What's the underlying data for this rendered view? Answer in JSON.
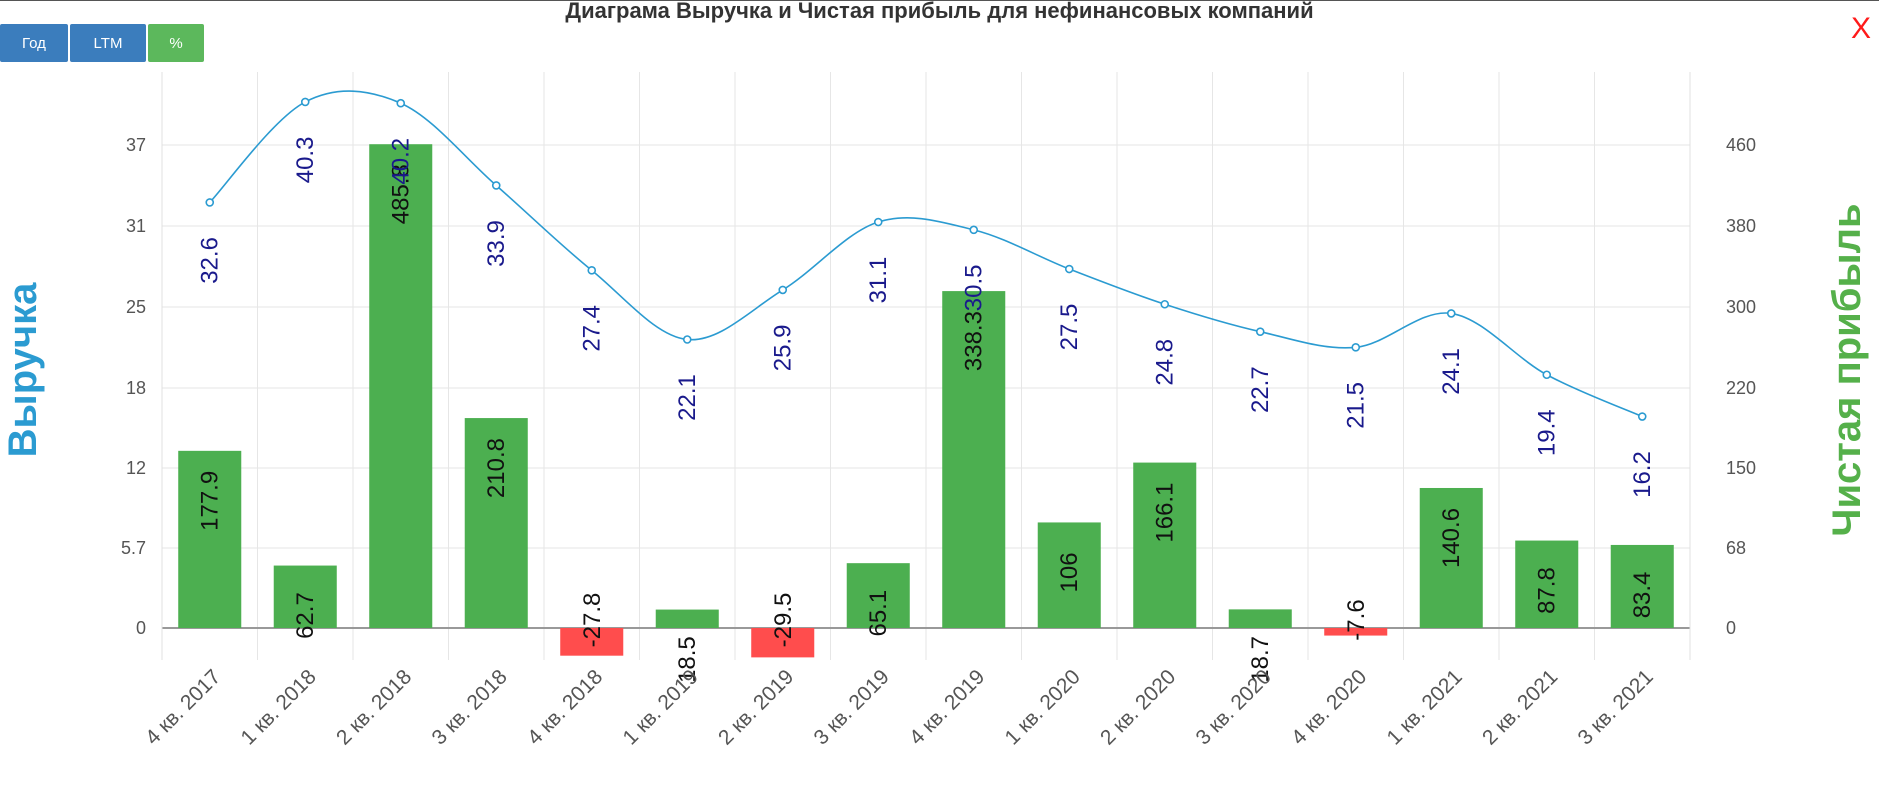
{
  "toolbar": {
    "year_label": "Год",
    "ltm_label": "LTM",
    "percent_label": "%"
  },
  "close_label": "X",
  "chart_data": {
    "type": "bar",
    "title": "Диаграма Выручка и Чистая прибыль для нефинансовых компаний",
    "categories": [
      "4 кв. 2017",
      "1 кв. 2018",
      "2 кв. 2018",
      "3 кв. 2018",
      "4 кв. 2018",
      "1 кв. 2019",
      "2 кв. 2019",
      "3 кв. 2019",
      "4 кв. 2019",
      "1 кв. 2020",
      "2 кв. 2020",
      "3 кв. 2020",
      "4 кв. 2020",
      "1 кв. 2021",
      "2 кв. 2021",
      "3 кв. 2021"
    ],
    "ylabel_left": "Выручка",
    "ylabel_right": "Чистая прибыль",
    "left_ticks": [
      "0",
      "5.7",
      "12",
      "18",
      "25",
      "31",
      "37"
    ],
    "right_ticks": [
      "0",
      "68",
      "150",
      "220",
      "300",
      "380",
      "460"
    ],
    "ylim_left": [
      -2.5,
      43
    ],
    "ylim_right": [
      -31,
      540
    ],
    "colors": {
      "positive_bar": "#4caf50",
      "negative_bar": "#ff4d4d",
      "line": "#2b9bd1",
      "line_label": "#1a1a8c"
    },
    "series": [
      {
        "name": "Чистая прибыль",
        "axis": "right",
        "type": "bar",
        "values": [
          177.9,
          62.7,
          485.8,
          210.8,
          -27.8,
          18.5,
          -29.5,
          65.1,
          338.3,
          106,
          166.1,
          18.7,
          -7.6,
          140.6,
          87.8,
          83.4
        ],
        "labels": [
          "177.9",
          "62.7",
          "485.8",
          "210.8",
          "-27.8",
          "18.5",
          "-29.5",
          "65.1",
          "338.3",
          "106",
          "166.1",
          "18.7",
          "-7.6",
          "140.6",
          "87.8",
          "83.4"
        ]
      },
      {
        "name": "Выручка",
        "axis": "left",
        "type": "line",
        "values": [
          32.6,
          40.3,
          40.2,
          33.9,
          27.4,
          22.1,
          25.9,
          31.1,
          30.5,
          27.5,
          24.8,
          22.7,
          21.5,
          24.1,
          19.4,
          16.2
        ],
        "labels": [
          "32.6",
          "40.3",
          "40.2",
          "33.9",
          "27.4",
          "22.1",
          "25.9",
          "31.1",
          "30.5",
          "27.5",
          "24.8",
          "22.7",
          "21.5",
          "24.1",
          "19.4",
          "16.2"
        ]
      }
    ]
  }
}
